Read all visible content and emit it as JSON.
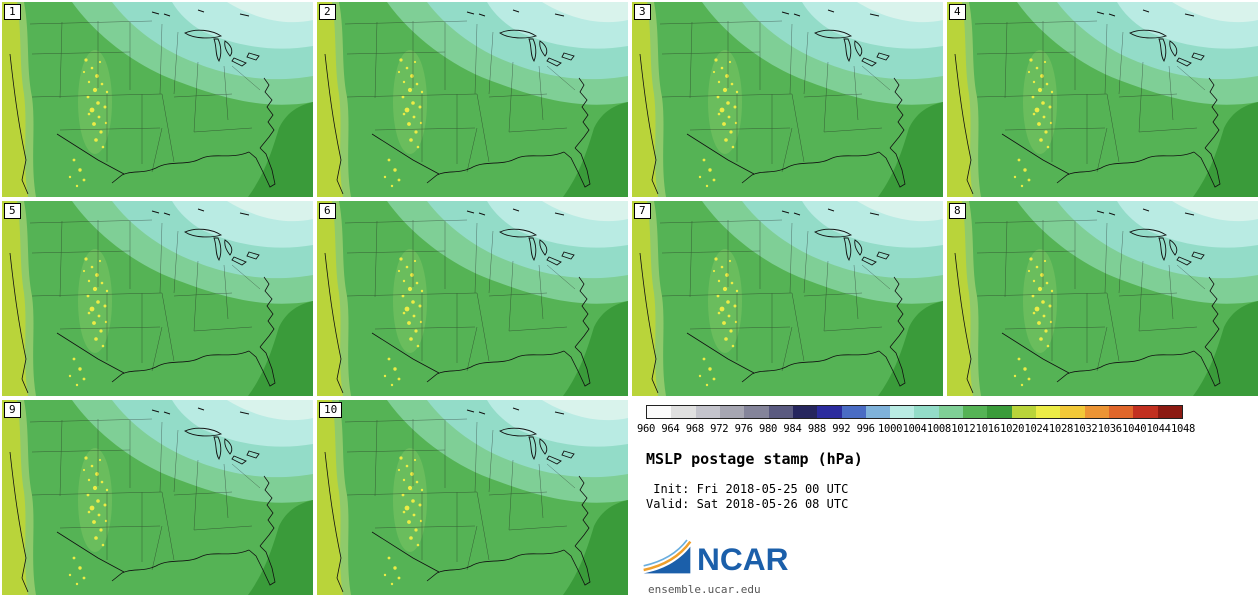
{
  "panels": [
    {
      "label": "1"
    },
    {
      "label": "2"
    },
    {
      "label": "3"
    },
    {
      "label": "4"
    },
    {
      "label": "5"
    },
    {
      "label": "6"
    },
    {
      "label": "7"
    },
    {
      "label": "8"
    },
    {
      "label": "9"
    },
    {
      "label": "10"
    }
  ],
  "colorbar": {
    "ticks": [
      "960",
      "964",
      "968",
      "972",
      "976",
      "980",
      "984",
      "988",
      "992",
      "996",
      "1000",
      "1004",
      "1008",
      "1012",
      "1016",
      "1020",
      "1024",
      "1028",
      "1032",
      "1036",
      "1040",
      "1044",
      "1048"
    ],
    "colors": [
      "#fafafa",
      "#e0e0e0",
      "#c4c4cc",
      "#a6a6b2",
      "#84849a",
      "#5a5a80",
      "#26265e",
      "#2c2c9e",
      "#4a6cc4",
      "#7fb2da",
      "#b9ebe3",
      "#93dcc8",
      "#7fcf96",
      "#55b355",
      "#3a9b3a",
      "#b9d43a",
      "#ecec46",
      "#f2c838",
      "#ec9434",
      "#e0662a",
      "#c23020",
      "#8c1a12"
    ],
    "units": "hPa"
  },
  "caption": {
    "title": "MSLP postage stamp (hPa)",
    "init_line": " Init: Fri 2018-05-25 00 UTC",
    "valid_line": "Valid: Sat 2018-05-26 08 UTC"
  },
  "branding": {
    "logo_text": "NCAR",
    "logo_color": "#1b5faa",
    "site": "ensemble.ucar.edu"
  },
  "map_palette": {
    "main_green": "#55b355",
    "deep_green": "#3a9b3a",
    "mint": "#7fcf96",
    "teal": "#93dcc8",
    "pale_teal": "#b9ebe3",
    "yellow_green_band": "#b9d43a",
    "terrain_yellow": "#ecec46"
  }
}
